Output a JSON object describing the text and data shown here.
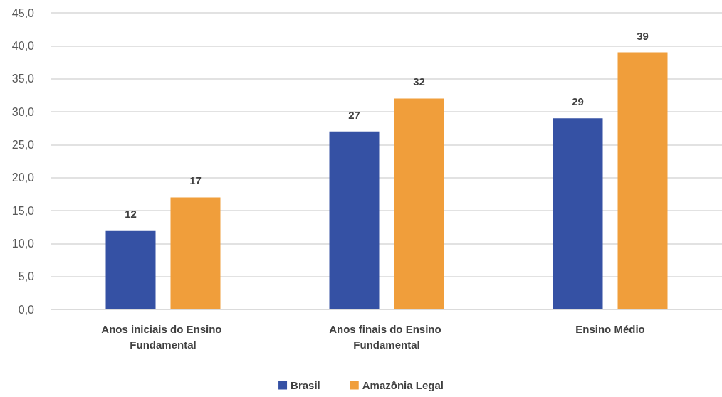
{
  "chart_data": {
    "type": "bar",
    "categories": [
      "Anos iniciais do Ensino Fundamental",
      "Anos finais do Ensino Fundamental",
      "Ensino Médio"
    ],
    "series": [
      {
        "name": "Brasil",
        "color": "#3551a4",
        "values": [
          12,
          27,
          29
        ]
      },
      {
        "name": "Amazônia Legal",
        "color": "#f09e3b",
        "values": [
          17,
          32,
          39
        ]
      }
    ],
    "ylim": [
      0,
      45
    ],
    "yticks": [
      {
        "value": 0,
        "label": "0,0"
      },
      {
        "value": 5,
        "label": "5,0"
      },
      {
        "value": 10,
        "label": "10,0"
      },
      {
        "value": 15,
        "label": "15,0"
      },
      {
        "value": 20,
        "label": "20,0"
      },
      {
        "value": 25,
        "label": "25,0"
      },
      {
        "value": 30,
        "label": "30,0"
      },
      {
        "value": 35,
        "label": "35,0"
      },
      {
        "value": 40,
        "label": "40,0"
      },
      {
        "value": 45,
        "label": "45,0"
      }
    ],
    "grid": "y",
    "legend": "bottom",
    "data_labels": true
  }
}
